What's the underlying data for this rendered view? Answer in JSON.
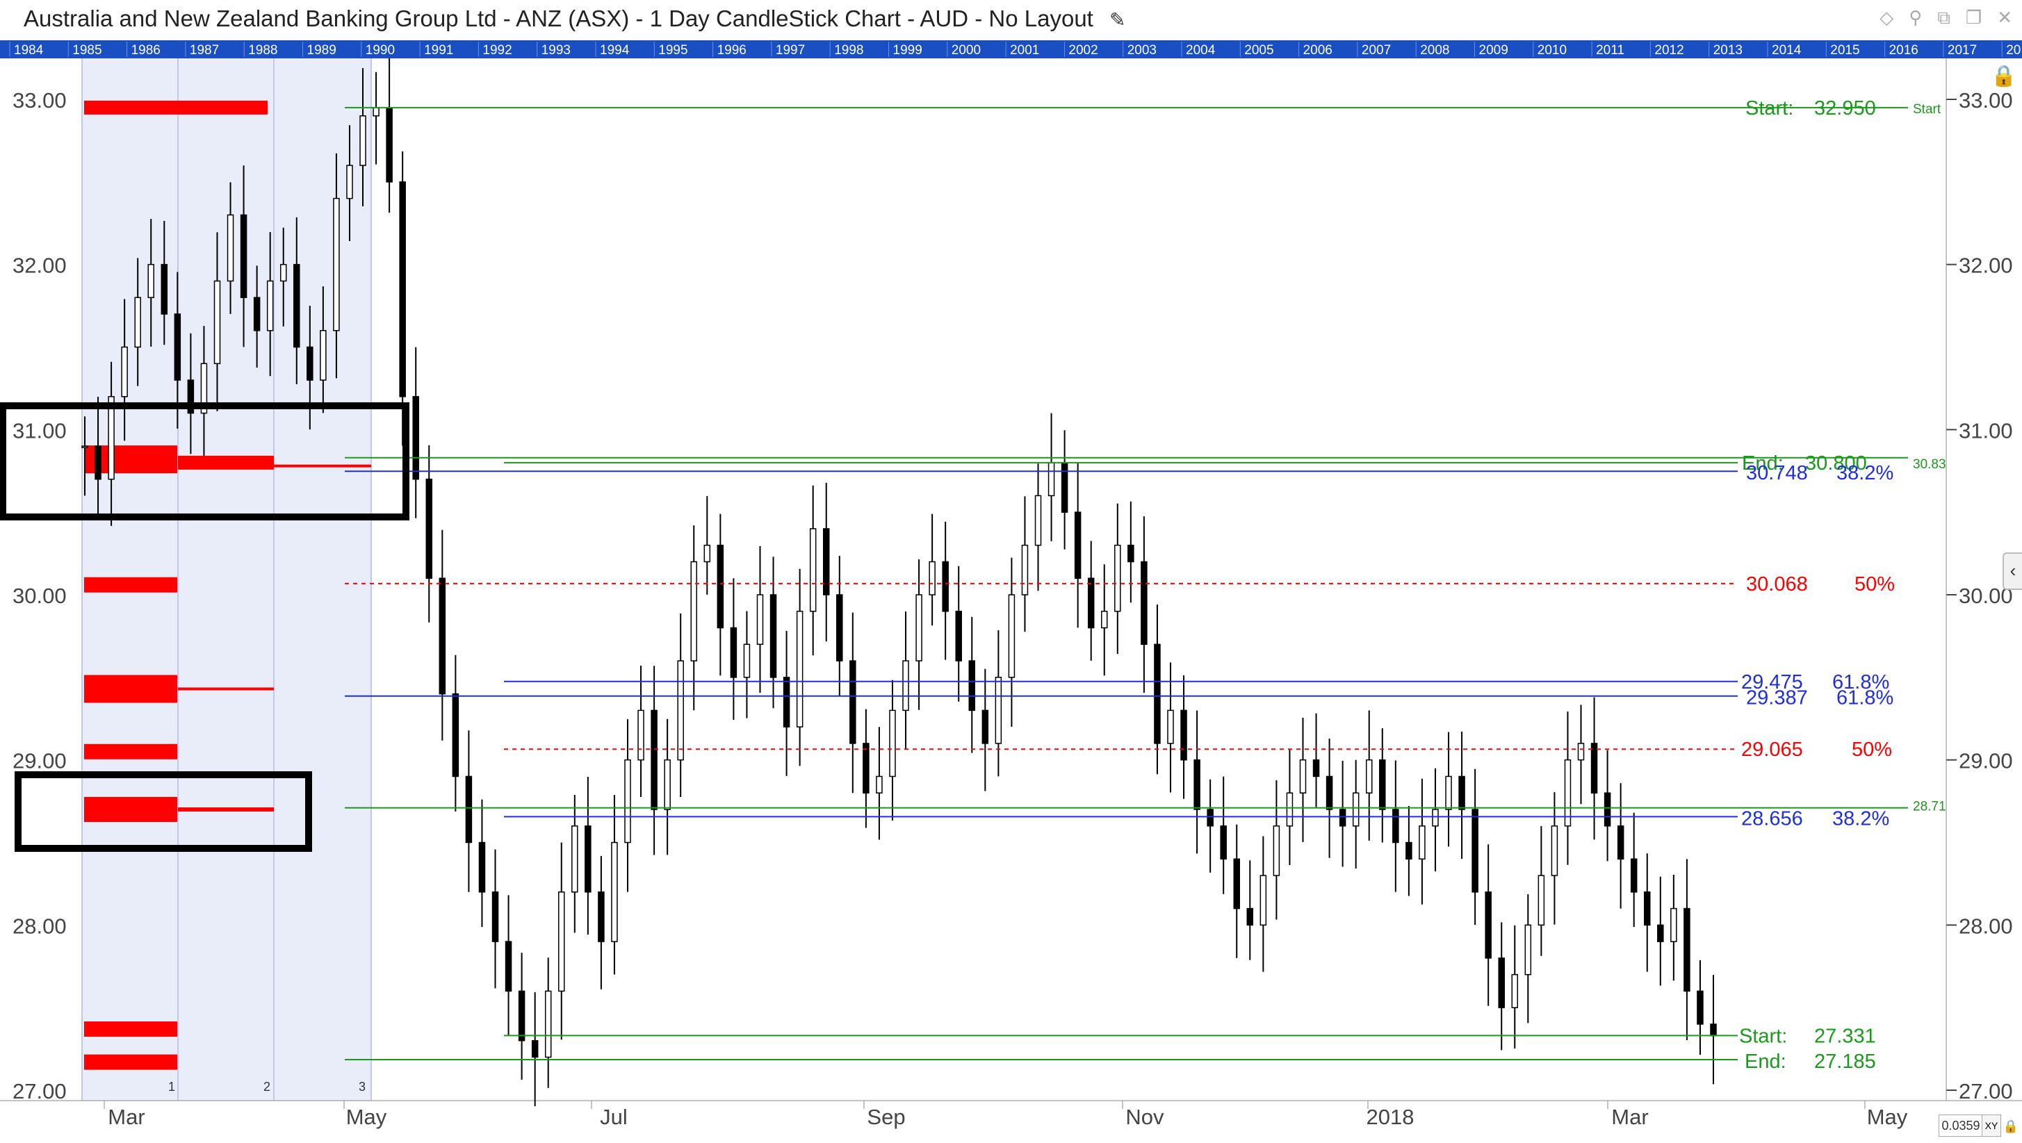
{
  "header": {
    "title": "Australia and New Zealand Banking Group Ltd - ANZ (ASX) - 1 Day CandleStick Chart - AUD - No Layout",
    "edit_icon": "pencil-icon",
    "toolbar_icons": [
      "diamond-icon",
      "pin-icon",
      "popout-icon",
      "restore-icon",
      "close-icon"
    ]
  },
  "year_strip": [
    "1984",
    "1985",
    "1986",
    "1987",
    "1988",
    "1989",
    "1990",
    "1991",
    "1992",
    "1993",
    "1994",
    "1995",
    "1996",
    "1997",
    "1998",
    "1999",
    "2000",
    "2001",
    "2002",
    "2003",
    "2004",
    "2005",
    "2006",
    "2007",
    "2008",
    "2009",
    "2010",
    "2011",
    "2012",
    "2013",
    "2014",
    "2015",
    "2016",
    "2017",
    "20"
  ],
  "zoom": "0.0359",
  "xy_label": "XY",
  "colors": {
    "candle": "#000000",
    "green": "#1a9a1a",
    "blue": "#1f2fe0",
    "red": "#ff0000",
    "shade": "#e9ecf9",
    "year_strip": "#1a4fc4"
  },
  "chart_data": {
    "type": "candlestick",
    "ylim": [
      27.0,
      33.2
    ],
    "yticks": [
      "27.00",
      "28.00",
      "29.00",
      "30.00",
      "31.00",
      "32.00",
      "33.00"
    ],
    "xticks": [
      "Mar",
      "May",
      "Jul",
      "Sep",
      "Nov",
      "2018",
      "Mar",
      "May"
    ],
    "volume_profile_labels": [
      "1",
      "2",
      "3"
    ],
    "annotations": [
      {
        "label": "Start:",
        "value": "32.950",
        "tag": "Start",
        "color": "green"
      },
      {
        "label": "End:",
        "value": "30.800",
        "tag": "30.83",
        "color": "green"
      },
      {
        "label": "",
        "value": "30.748",
        "pct": "38.2%",
        "color": "blue"
      },
      {
        "label": "",
        "value": "30.068",
        "pct": "50%",
        "color": "red"
      },
      {
        "label": "",
        "value": "29.475",
        "pct": "61.8%",
        "color": "blue"
      },
      {
        "label": "",
        "value": "29.387",
        "pct": "61.8%",
        "color": "blue"
      },
      {
        "label": "",
        "value": "29.065",
        "pct": "50%",
        "color": "red"
      },
      {
        "label": "",
        "value": "28.656",
        "pct": "38.2%",
        "color": "blue"
      },
      {
        "label": "",
        "value": "",
        "tag": "28.71",
        "color": "green"
      },
      {
        "label": "Start:",
        "value": "27.331",
        "color": "green"
      },
      {
        "label": "End:",
        "value": "27.185",
        "color": "green"
      }
    ],
    "series_close": [
      30.9,
      30.7,
      31.2,
      31.5,
      31.8,
      32.0,
      31.7,
      31.3,
      31.1,
      31.4,
      31.9,
      32.3,
      31.8,
      31.6,
      31.9,
      32.0,
      31.5,
      31.3,
      31.6,
      32.4,
      32.6,
      32.9,
      32.95,
      32.5,
      31.2,
      30.7,
      30.1,
      29.4,
      28.9,
      28.5,
      28.2,
      27.9,
      27.6,
      27.3,
      27.2,
      27.6,
      28.2,
      28.6,
      28.2,
      27.9,
      28.5,
      29.0,
      29.3,
      28.7,
      29.0,
      29.6,
      30.2,
      30.3,
      29.8,
      29.5,
      29.7,
      30.0,
      29.5,
      29.2,
      29.9,
      30.4,
      30.0,
      29.6,
      29.1,
      28.8,
      28.9,
      29.3,
      29.6,
      30.0,
      30.2,
      29.9,
      29.6,
      29.3,
      29.1,
      29.5,
      30.0,
      30.3,
      30.6,
      30.8,
      30.5,
      30.1,
      29.8,
      29.9,
      30.3,
      30.2,
      29.7,
      29.1,
      29.3,
      29.0,
      28.7,
      28.6,
      28.4,
      28.1,
      28.0,
      28.3,
      28.6,
      28.8,
      29.0,
      28.9,
      28.7,
      28.6,
      28.8,
      29.0,
      28.7,
      28.5,
      28.4,
      28.6,
      28.7,
      28.9,
      28.7,
      28.2,
      27.8,
      27.5,
      27.7,
      28.0,
      28.3,
      28.6,
      29.0,
      29.1,
      28.8,
      28.6,
      28.4,
      28.2,
      28.0,
      27.9,
      28.1,
      27.6,
      27.4,
      27.33
    ]
  }
}
